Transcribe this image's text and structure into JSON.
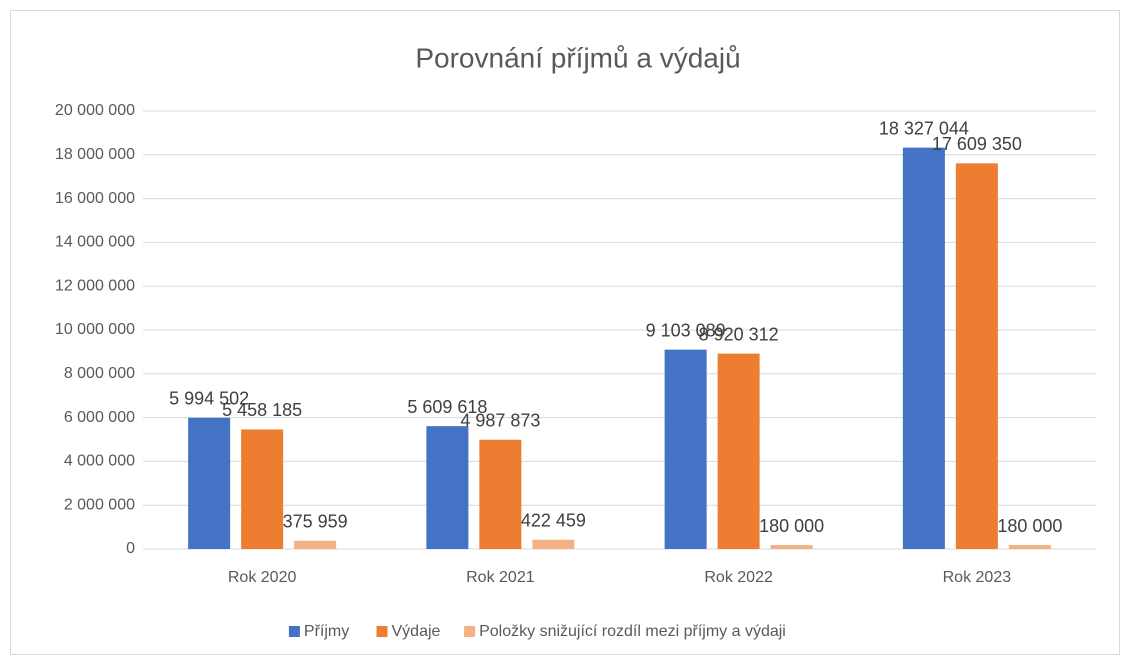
{
  "chart_data": {
    "type": "bar",
    "title": "Porovnání příjmů a výdajů",
    "categories": [
      "Rok 2020",
      "Rok 2021",
      "Rok 2022",
      "Rok 2023"
    ],
    "series": [
      {
        "name": "Příjmy",
        "color": "#4472c4",
        "values": [
          5994502,
          5609618,
          9103089,
          18327044
        ],
        "value_labels": [
          "5 994 502",
          "5 609 618",
          "9 103 089",
          "18 327 044"
        ]
      },
      {
        "name": "Výdaje",
        "color": "#ed7d31",
        "values": [
          5458185,
          4987873,
          8920312,
          17609350
        ],
        "value_labels": [
          "5 458 185",
          "4 987 873",
          "8 920 312",
          "17 609 350"
        ]
      },
      {
        "name": "Položky snižující rozdíl mezi příjmy a výdaji",
        "color": "#f4b183",
        "values": [
          375959,
          422459,
          180000,
          180000
        ],
        "value_labels": [
          "375 959",
          "422 459",
          "180 000",
          "180 000"
        ]
      }
    ],
    "ylim": [
      0,
      20000000
    ],
    "yticks": [
      0,
      {
        "value": 2000000,
        "label": "2 000 000"
      },
      {
        "value": 4000000,
        "label": "4 000 000"
      },
      {
        "value": 6000000,
        "label": "6 000 000"
      },
      {
        "value": 8000000,
        "label": "8 000 000"
      },
      {
        "value": 10000000,
        "label": "10 000 000"
      },
      {
        "value": 12000000,
        "label": "12 000 000"
      },
      {
        "value": 14000000,
        "label": "14 000 000"
      },
      {
        "value": 16000000,
        "label": "16 000 000"
      },
      {
        "value": 18000000,
        "label": "18 000 000"
      },
      {
        "value": 20000000,
        "label": "20 000 000"
      }
    ],
    "grid": true,
    "legend": "bottom"
  }
}
